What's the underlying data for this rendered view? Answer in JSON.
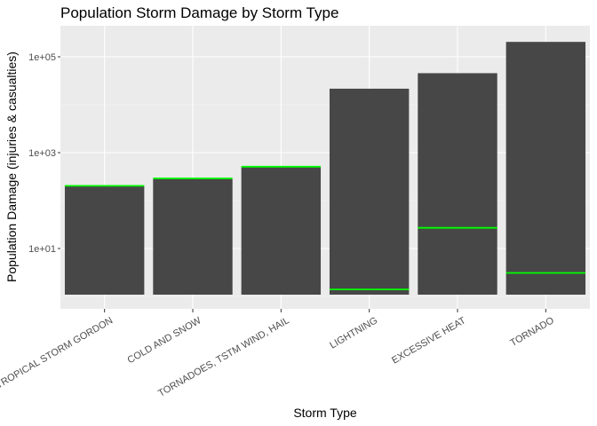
{
  "chart_data": {
    "type": "bar",
    "title": "Population Storm Damage by Storm Type",
    "xlabel": "Storm Type",
    "ylabel": "Population Damage (injuries & casualties)",
    "yscale": "log10",
    "ylim": [
      1,
      250000
    ],
    "yticks": [
      10,
      1000,
      100000
    ],
    "ytick_labels": [
      "1e+01",
      "1e+03",
      "1e+05"
    ],
    "grid": true,
    "categories": [
      "TROPICAL STORM GORDON",
      "COLD AND SNOW",
      "TORNADOES, TSTM WIND, HAIL",
      "LIGHTNING",
      "EXCESSIVE HEAT",
      "TORNADO"
    ],
    "values": [
      201,
      285,
      502,
      21600,
      45500,
      204700
    ],
    "markers": [
      203,
      290,
      510,
      1.4,
      27,
      3.1
    ],
    "colors": {
      "bar": "#474747",
      "marker": "#00ff00",
      "panel": "#ebebeb",
      "grid_major": "#ffffff",
      "grid_minor": "#f5f5f5"
    }
  }
}
